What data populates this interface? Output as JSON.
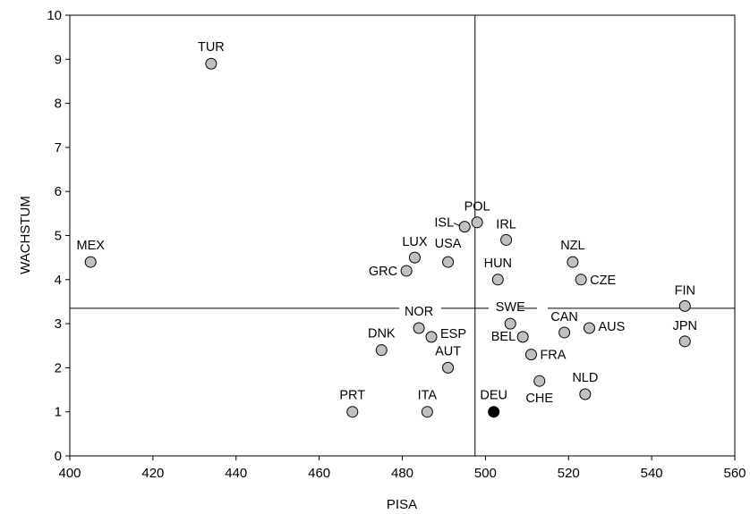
{
  "chart_data": {
    "type": "scatter",
    "title": "",
    "xlabel": "PISA",
    "ylabel": "WACHSTUM",
    "xlim": [
      400,
      560
    ],
    "ylim": [
      0,
      10
    ],
    "xticks": [
      "400",
      "420",
      "440",
      "460",
      "480",
      "500",
      "520",
      "540",
      "560"
    ],
    "yticks": [
      "0",
      "1",
      "2",
      "3",
      "4",
      "5",
      "6",
      "7",
      "8",
      "9",
      "10"
    ],
    "reference_lines": {
      "x": 497.5,
      "y": 3.35
    },
    "grid": false,
    "legend": "none",
    "colors": {
      "point_fill": "#c0c0c0",
      "highlight_fill": "#000000",
      "stroke": "#000000"
    },
    "points": [
      {
        "label": "TUR",
        "x": 434,
        "y": 8.9
      },
      {
        "label": "MEX",
        "x": 405,
        "y": 4.4
      },
      {
        "label": "POL",
        "x": 498,
        "y": 5.3
      },
      {
        "label": "ISL",
        "x": 495,
        "y": 5.2
      },
      {
        "label": "IRL",
        "x": 505,
        "y": 4.9
      },
      {
        "label": "LUX",
        "x": 483,
        "y": 4.5
      },
      {
        "label": "USA",
        "x": 491,
        "y": 4.4
      },
      {
        "label": "GRC",
        "x": 481,
        "y": 4.2
      },
      {
        "label": "HUN",
        "x": 503,
        "y": 4.0
      },
      {
        "label": "NZL",
        "x": 521,
        "y": 4.4
      },
      {
        "label": "CZE",
        "x": 523,
        "y": 4.0
      },
      {
        "label": "FIN",
        "x": 548,
        "y": 3.4
      },
      {
        "label": "SWE",
        "x": 506,
        "y": 3.0
      },
      {
        "label": "NOR",
        "x": 484,
        "y": 2.9
      },
      {
        "label": "CAN",
        "x": 519,
        "y": 2.8
      },
      {
        "label": "AUS",
        "x": 525,
        "y": 2.9
      },
      {
        "label": "ESP",
        "x": 487,
        "y": 2.7
      },
      {
        "label": "BEL",
        "x": 509,
        "y": 2.7
      },
      {
        "label": "JPN",
        "x": 548,
        "y": 2.6
      },
      {
        "label": "DNK",
        "x": 475,
        "y": 2.4
      },
      {
        "label": "FRA",
        "x": 511,
        "y": 2.3
      },
      {
        "label": "AUT",
        "x": 491,
        "y": 2.0
      },
      {
        "label": "CHE",
        "x": 513,
        "y": 1.7
      },
      {
        "label": "NLD",
        "x": 524,
        "y": 1.4
      },
      {
        "label": "PRT",
        "x": 468,
        "y": 1.0
      },
      {
        "label": "ITA",
        "x": 486,
        "y": 1.0
      },
      {
        "label": "DEU",
        "x": 502,
        "y": 1.0,
        "highlight": true
      }
    ]
  }
}
